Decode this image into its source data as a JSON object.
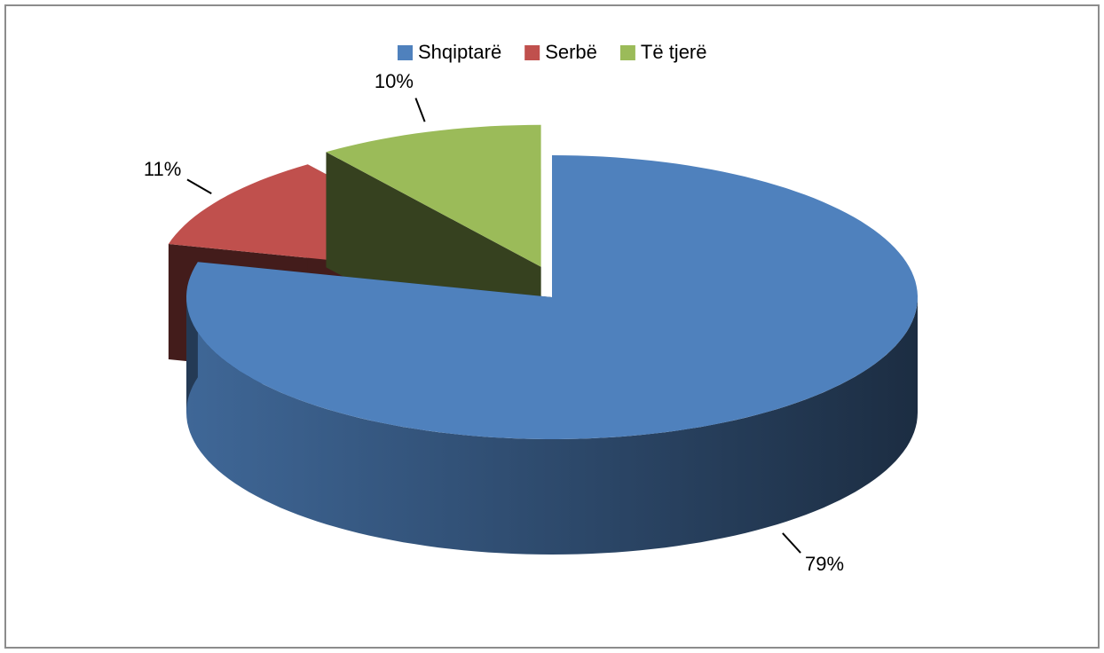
{
  "chart_data": {
    "type": "pie",
    "categories": [
      "Shqiptarë",
      "Serbë",
      "Të tjerë"
    ],
    "values": [
      79,
      11,
      10
    ],
    "value_labels": [
      "79%",
      "11%",
      "10%"
    ],
    "colors": [
      "#4f81bd",
      "#c0504d",
      "#9bbb59"
    ],
    "legend": "top"
  }
}
